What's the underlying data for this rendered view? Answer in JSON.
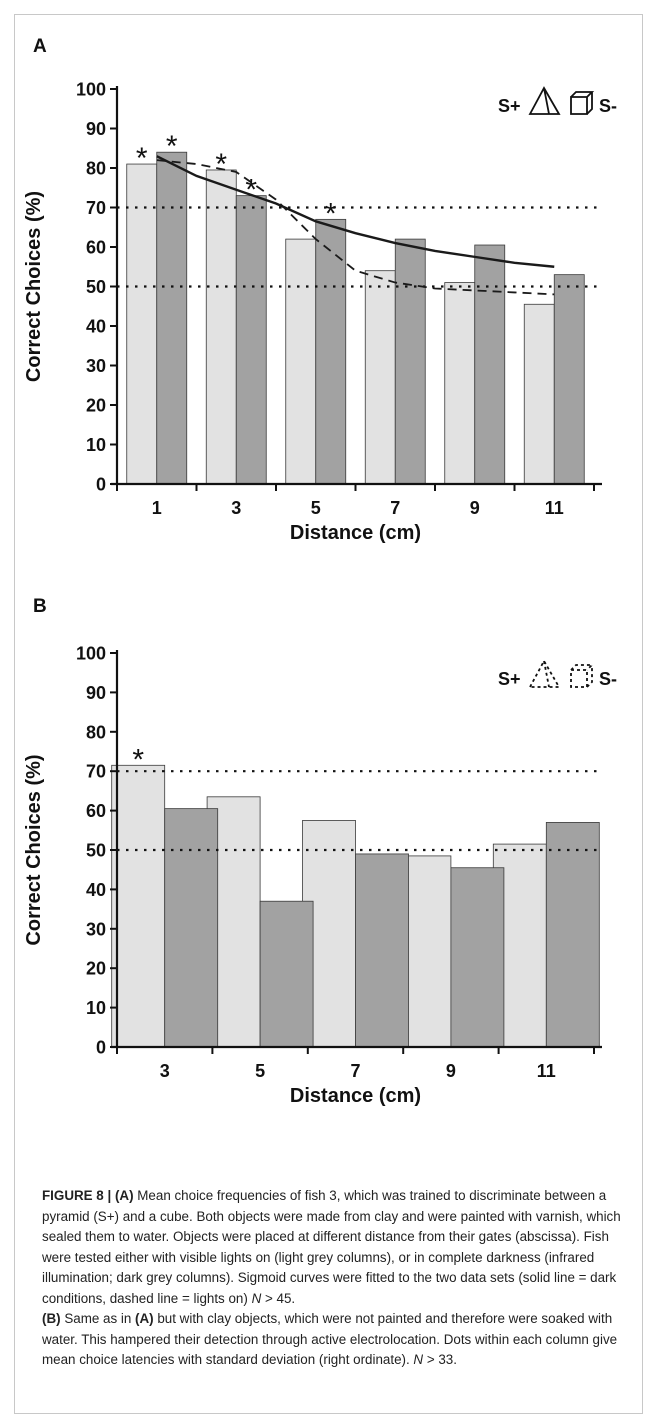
{
  "colors": {
    "light_bar": "#e2e2e2",
    "dark_bar": "#a2a2a2",
    "bar_stroke": "#3a3a3a",
    "axis": "#111111",
    "caption_label": "#222222"
  },
  "chart_data": [
    {
      "panel": "A",
      "type": "bar",
      "title": "",
      "xlabel": "Distance (cm)",
      "ylabel": "Correct Choices (%)",
      "ylim": [
        0,
        100
      ],
      "yticks": [
        0,
        10,
        20,
        30,
        40,
        50,
        60,
        70,
        80,
        90,
        100
      ],
      "categories": [
        "1",
        "3",
        "5",
        "7",
        "9",
        "11"
      ],
      "series": [
        {
          "key": "light",
          "values": [
            81,
            79.5,
            62,
            54,
            51,
            45.5
          ]
        },
        {
          "key": "dark",
          "values": [
            84,
            73,
            67,
            62,
            60.5,
            53
          ]
        }
      ],
      "curves": [
        {
          "style": "solid",
          "points": [
            [
              1,
              83
            ],
            [
              2,
              78
            ],
            [
              3,
              74.5
            ],
            [
              4,
              71
            ],
            [
              5,
              66.5
            ],
            [
              6,
              63.5
            ],
            [
              7,
              61
            ],
            [
              8,
              59
            ],
            [
              9,
              57.5
            ],
            [
              10,
              56
            ],
            [
              11,
              55
            ]
          ]
        },
        {
          "style": "dashed",
          "points": [
            [
              1,
              82
            ],
            [
              2,
              81
            ],
            [
              3,
              79
            ],
            [
              4,
              72
            ],
            [
              5,
              62
            ],
            [
              6,
              54
            ],
            [
              7,
              51
            ],
            [
              8,
              49.5
            ],
            [
              9,
              49
            ],
            [
              10,
              48.5
            ],
            [
              11,
              48
            ]
          ]
        }
      ],
      "reference_lines": [
        70,
        50
      ],
      "significance": [
        {
          "category": "1",
          "series": "light"
        },
        {
          "category": "1",
          "series": "dark"
        },
        {
          "category": "3",
          "series": "light"
        },
        {
          "category": "3",
          "series": "dark"
        },
        {
          "category": "5",
          "series": "dark"
        }
      ],
      "legend": {
        "left": "S+",
        "right": "S-",
        "placement": "top-right",
        "style": "solid"
      },
      "grid": false
    },
    {
      "panel": "B",
      "type": "bar",
      "title": "",
      "xlabel": "Distance (cm)",
      "ylabel": "Correct Choices (%)",
      "ylim": [
        0,
        100
      ],
      "yticks": [
        0,
        10,
        20,
        30,
        40,
        50,
        60,
        70,
        80,
        90,
        100
      ],
      "categories": [
        "3",
        "5",
        "7",
        "9",
        "11"
      ],
      "series": [
        {
          "key": "light",
          "values": [
            71.5,
            63.5,
            57.5,
            48.5,
            51.5
          ]
        },
        {
          "key": "dark",
          "values": [
            60.5,
            37,
            49,
            45.5,
            57
          ]
        }
      ],
      "curves": [],
      "reference_lines": [
        70,
        50
      ],
      "significance": [
        {
          "category": "3",
          "series": "light"
        }
      ],
      "legend": {
        "left": "S+",
        "right": "S-",
        "placement": "top-right",
        "style": "dashed"
      },
      "grid": false
    }
  ],
  "caption": {
    "label": "FIGURE 8 | ",
    "segments": [
      {
        "t": "(A)",
        "b": true
      },
      {
        "t": " Mean choice frequencies of fish 3, which was trained to discriminate between a pyramid (S+) and a cube. Both objects were made from clay and were painted with varnish, which sealed them to water. Objects were placed at different distance from their gates (abscissa). Fish were tested either with visible lights on (light grey columns), or in complete darkness (infrared illumination; dark grey columns). Sigmoid curves were fitted to the two data sets (solid line = dark conditions, dashed line = lights on) ",
        "b": false
      },
      {
        "t": "N",
        "i": true
      },
      {
        "t": " > 45.",
        "b": false
      },
      {
        "t": "\n",
        "b": false
      },
      {
        "t": "(B)",
        "b": true
      },
      {
        "t": " Same as in ",
        "b": false
      },
      {
        "t": "(A)",
        "b": true
      },
      {
        "t": " but with clay objects, which were not painted and therefore were soaked with water. This hampered their detection through active electrolocation. Dots within each column give mean choice latencies with standard deviation (right ordinate). ",
        "b": false
      },
      {
        "t": "N",
        "i": true
      },
      {
        "t": " > 33.",
        "b": false
      }
    ]
  }
}
